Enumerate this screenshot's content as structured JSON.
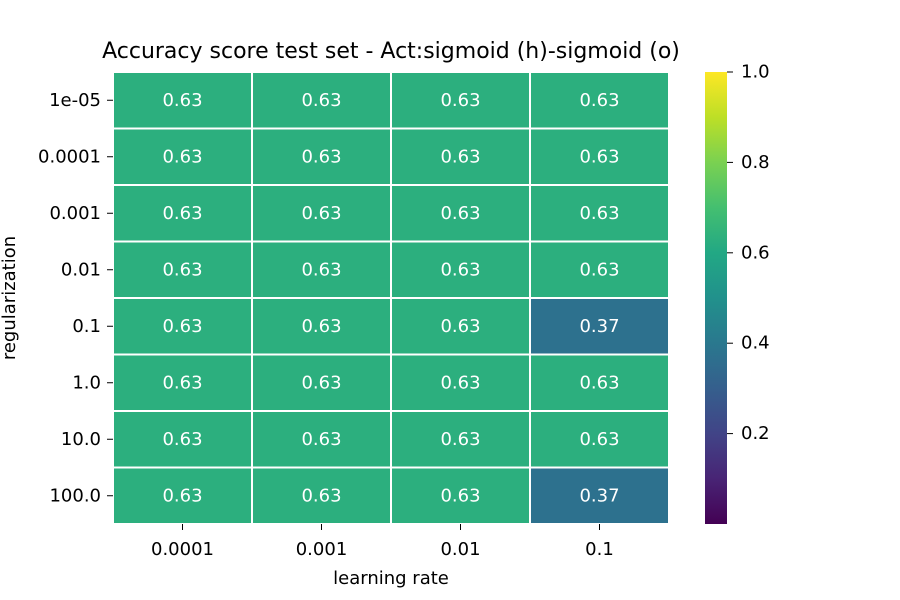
{
  "chart_data": {
    "type": "heatmap",
    "title": "Accuracy score test set - Act:sigmoid (h)-sigmoid (o)",
    "xlabel": "learning rate",
    "ylabel": "regularization",
    "x_categories": [
      "0.0001",
      "0.001",
      "0.01",
      "0.1"
    ],
    "y_categories": [
      "1e-05",
      "0.0001",
      "0.001",
      "0.01",
      "0.1",
      "1.0",
      "10.0",
      "100.0"
    ],
    "values": [
      [
        0.63,
        0.63,
        0.63,
        0.63
      ],
      [
        0.63,
        0.63,
        0.63,
        0.63
      ],
      [
        0.63,
        0.63,
        0.63,
        0.63
      ],
      [
        0.63,
        0.63,
        0.63,
        0.63
      ],
      [
        0.63,
        0.63,
        0.63,
        0.37
      ],
      [
        0.63,
        0.63,
        0.63,
        0.63
      ],
      [
        0.63,
        0.63,
        0.63,
        0.63
      ],
      [
        0.63,
        0.63,
        0.63,
        0.37
      ]
    ],
    "annotations": [
      [
        "0.63",
        "0.63",
        "0.63",
        "0.63"
      ],
      [
        "0.63",
        "0.63",
        "0.63",
        "0.63"
      ],
      [
        "0.63",
        "0.63",
        "0.63",
        "0.63"
      ],
      [
        "0.63",
        "0.63",
        "0.63",
        "0.63"
      ],
      [
        "0.63",
        "0.63",
        "0.63",
        "0.37"
      ],
      [
        "0.63",
        "0.63",
        "0.63",
        "0.63"
      ],
      [
        "0.63",
        "0.63",
        "0.63",
        "0.63"
      ],
      [
        "0.63",
        "0.63",
        "0.63",
        "0.37"
      ]
    ],
    "colormap": "viridis",
    "colorbar": {
      "vmin": 0.0,
      "vmax": 1.0,
      "ticks": [
        0.2,
        0.4,
        0.6,
        0.8,
        1.0
      ],
      "tick_labels": [
        "0.2",
        "0.4",
        "0.6",
        "0.8",
        "1.0"
      ],
      "placement": "right"
    },
    "cell_border_color": "#ffffff",
    "grid": false
  }
}
